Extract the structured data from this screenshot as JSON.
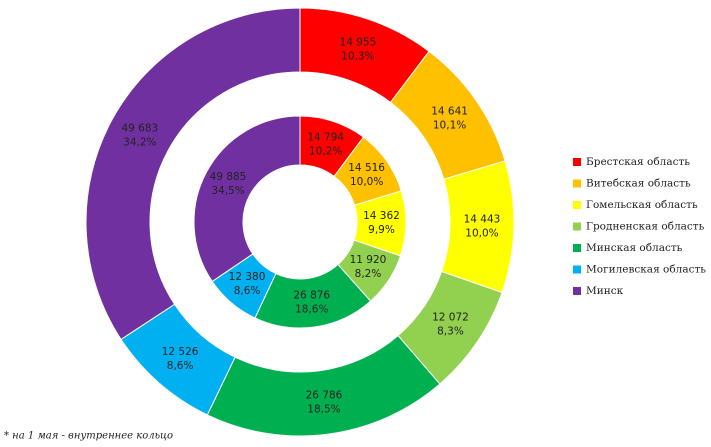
{
  "chart_data": {
    "type": "donut",
    "categories": [
      "Брестская область",
      "Витебская область",
      "Гомельская область",
      "Гродненская область",
      "Минская область",
      "Могилевская область",
      "Минск"
    ],
    "colors": [
      "#ff0000",
      "#ffc000",
      "#ffff00",
      "#92d050",
      "#00b050",
      "#00b0f0",
      "#7030a0"
    ],
    "series": [
      {
        "values": [
          14955,
          14641,
          14443,
          12072,
          26786,
          12526,
          49683
        ],
        "value_labels": [
          "14 955",
          "14 641",
          "14 443",
          "12 072",
          "26 786",
          "12 526",
          "49 683"
        ],
        "share_labels": [
          "10,3%",
          "10,1%",
          "10,0%",
          "8,3%",
          "18,5%",
          "8,6%",
          "34,2%"
        ]
      },
      {
        "values": [
          14794,
          14516,
          14362,
          11920,
          26876,
          12380,
          49885
        ],
        "value_labels": [
          "14 794",
          "14 516",
          "14 362",
          "11 920",
          "26 876",
          "12 380",
          "49 885"
        ],
        "share_labels": [
          "10,2%",
          "10,0%",
          "9,9%",
          "8,2%",
          "18,6%",
          "8,6%",
          "34,5%"
        ]
      }
    ],
    "legend": "right",
    "footnote": "* на 1 мая - внутреннее кольцо"
  }
}
